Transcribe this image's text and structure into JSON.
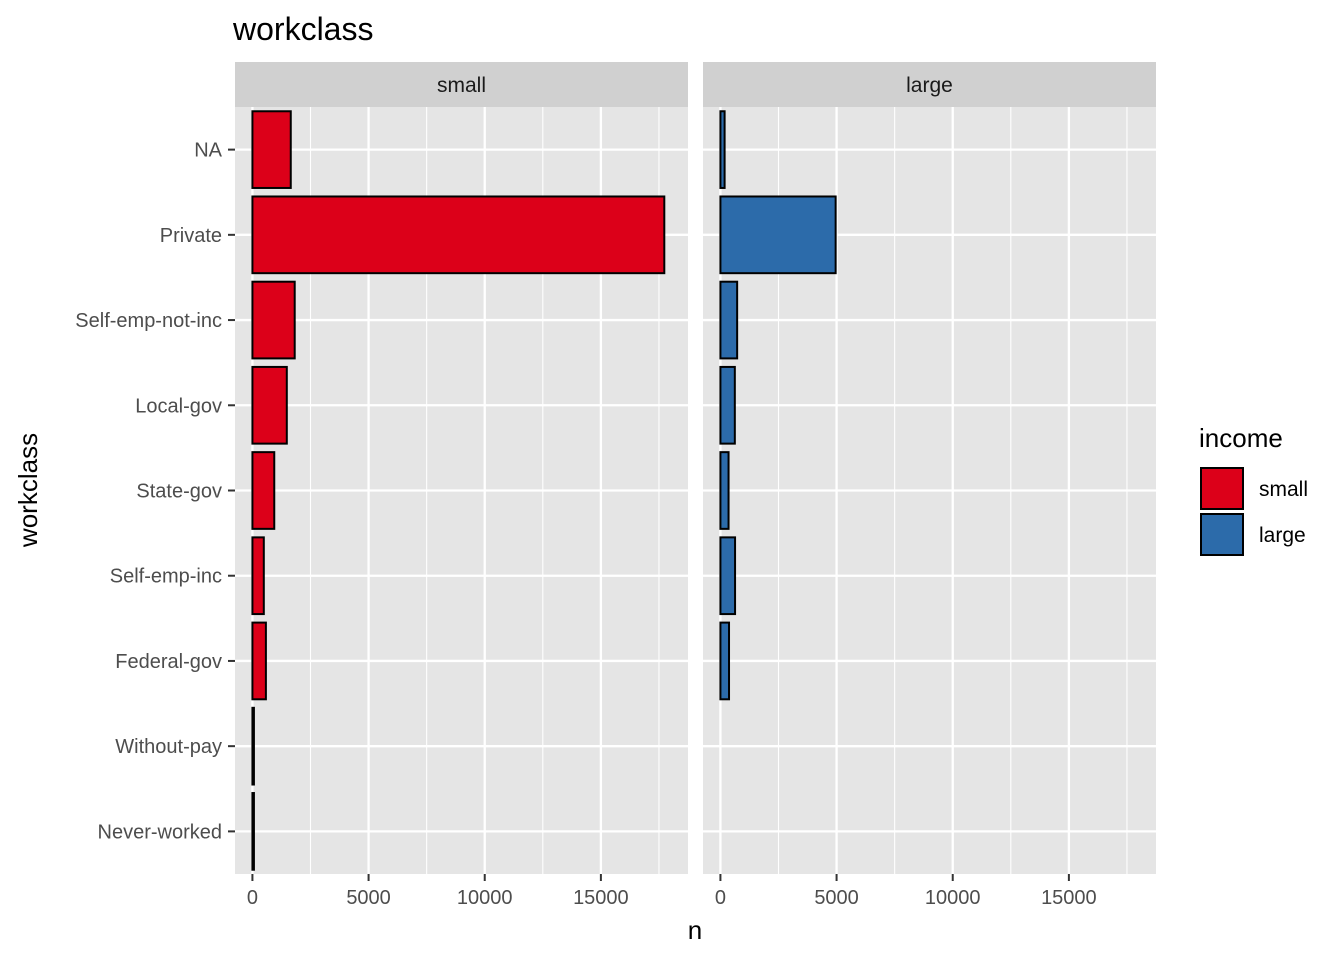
{
  "chart_data": {
    "type": "bar",
    "orientation": "horizontal",
    "title": "workclass",
    "xlabel": "n",
    "ylabel": "workclass",
    "categories": [
      "NA",
      "Private",
      "Self-emp-not-inc",
      "Local-gov",
      "State-gov",
      "Self-emp-inc",
      "Federal-gov",
      "Without-pay",
      "Never-worked"
    ],
    "xlim": [
      -750,
      18750
    ],
    "x_ticks": [
      0,
      5000,
      10000,
      15000
    ],
    "x_tick_labels": [
      "0",
      "5000",
      "10000",
      "15000"
    ],
    "panels": [
      {
        "label": "small",
        "color": "#DC0019",
        "values": [
          1650,
          17730,
          1820,
          1480,
          940,
          490,
          580,
          14,
          7
        ]
      },
      {
        "label": "large",
        "color": "#2C6BAA",
        "values": [
          180,
          4960,
          720,
          620,
          350,
          630,
          370,
          0,
          0
        ]
      }
    ],
    "legend": {
      "title": "income",
      "position": "right",
      "entries": [
        {
          "label": "small",
          "color": "#DC0019"
        },
        {
          "label": "large",
          "color": "#2C6BAA"
        }
      ]
    },
    "grid": true,
    "panel_background": "#E5E5E5",
    "strip_background": "#D0D0D0",
    "bar_outline": "#000000"
  }
}
